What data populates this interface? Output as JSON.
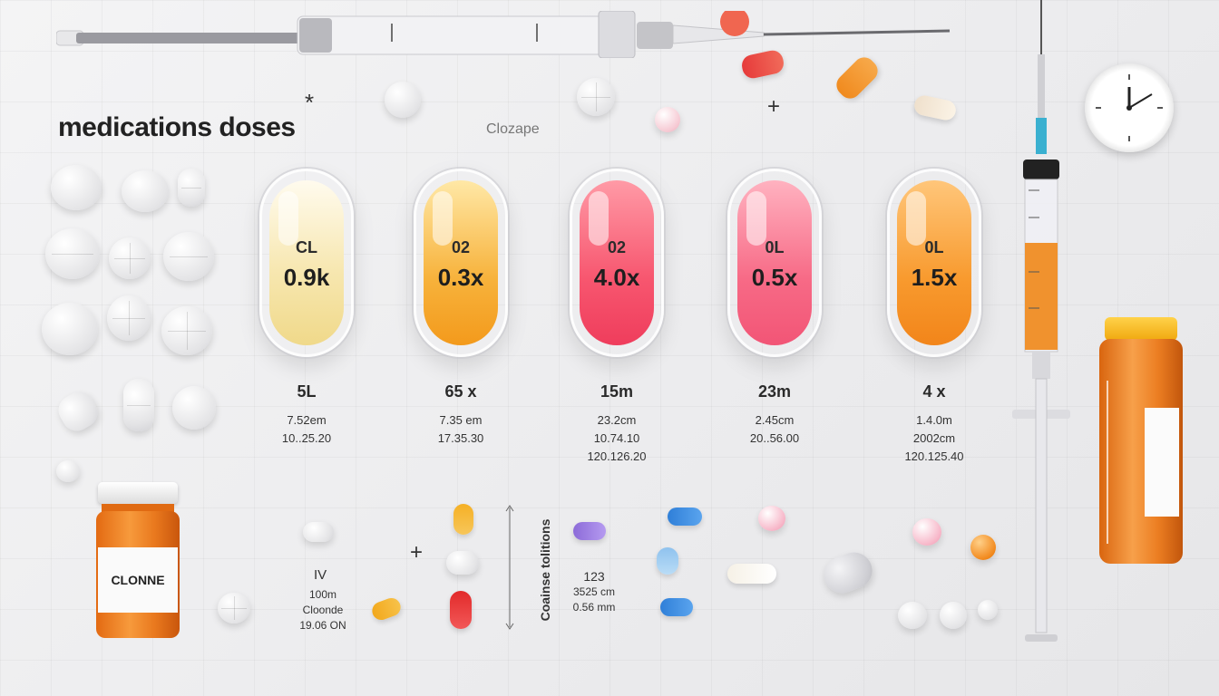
{
  "header": {
    "title": "medications doses",
    "subtitle": "Clozape",
    "star": "*",
    "plus": "+"
  },
  "columns": [
    {
      "code": "CL",
      "dose": "0.9k",
      "amount": "5L",
      "lines": [
        "7.52em",
        "10..25.20"
      ],
      "color": "#f7e7b0"
    },
    {
      "code": "02",
      "dose": "0.3x",
      "amount": "65 x",
      "lines": [
        "7.35 em",
        "17.35.30"
      ],
      "color": "#f7b23b"
    },
    {
      "code": "02",
      "dose": "4.0x",
      "amount": "15m",
      "lines": [
        "23.2cm",
        "10.74.10",
        "120.126.20"
      ],
      "color": "#f7566f"
    },
    {
      "code": "0L",
      "dose": "0.5x",
      "amount": "23m",
      "lines": [
        "2.45cm",
        "20..56.00"
      ],
      "color": "#f76a86"
    },
    {
      "code": "0L",
      "dose": "1.5x",
      "amount": "4 x",
      "lines": [
        "1.4.0m",
        "2002cm",
        "120.125.40"
      ],
      "color": "#f89a2e"
    }
  ],
  "bottle_left": {
    "label": "CLONNE"
  },
  "iv_block": {
    "lines": [
      "IV",
      "100m",
      "Cloonde",
      "19.06 ON"
    ]
  },
  "combo_block": {
    "vertical_label": "Coainse tolitions",
    "lines": [
      "123",
      "3525 cm",
      "0.56 mm"
    ]
  },
  "colors": {
    "accent_orange": "#ec7e22",
    "accent_red": "#f4566f",
    "accent_yellow": "#f7b23b"
  }
}
